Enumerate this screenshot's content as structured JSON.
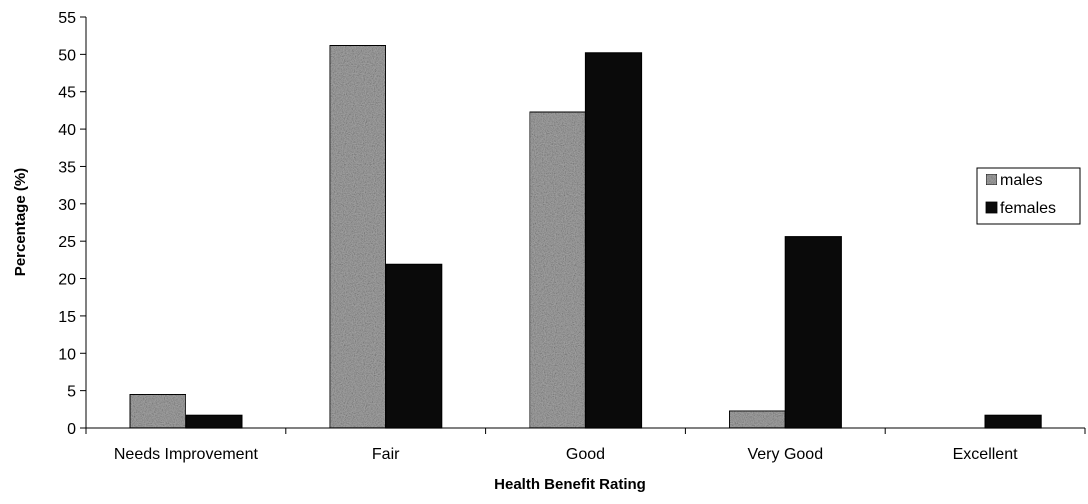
{
  "chart_data": {
    "type": "bar",
    "title": "",
    "xlabel": "Health Benefit Rating",
    "ylabel": "Percentage (%)",
    "categories": [
      "Needs Improvement",
      "Fair",
      "Good",
      "Very Good",
      "Excellent"
    ],
    "series": [
      {
        "name": "males",
        "values": [
          4.5,
          51.2,
          42.3,
          2.3,
          0
        ],
        "color": "#a6a6a6",
        "texture": "speckled-gray"
      },
      {
        "name": "females",
        "values": [
          1.7,
          21.9,
          50.2,
          25.6,
          1.7
        ],
        "color": "#0a0a0a",
        "texture": "solid-black"
      }
    ],
    "ylim": [
      0,
      55
    ],
    "yticks": [
      0,
      5,
      10,
      15,
      20,
      25,
      30,
      35,
      40,
      45,
      50,
      55
    ],
    "grid": false,
    "legend_position": "right"
  }
}
